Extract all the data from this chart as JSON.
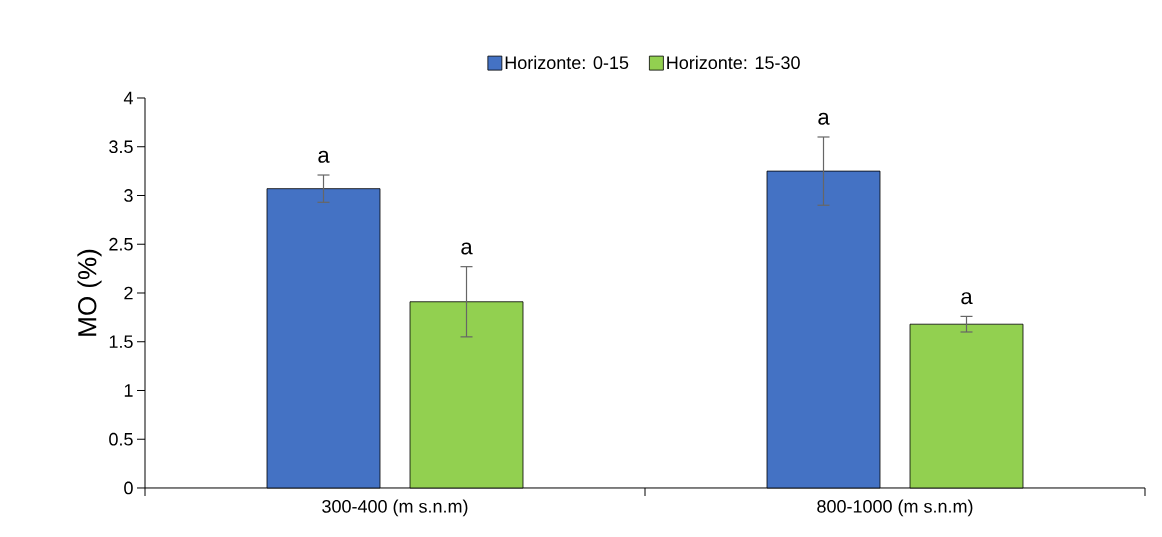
{
  "chart_data": {
    "type": "bar",
    "ylabel": "MO (%)",
    "categories": [
      "300-400 (m s.n.m)",
      "800-1000 (m s.n.m)"
    ],
    "series": [
      {
        "name": "Horizonte: 0-15",
        "color": "#4472c4",
        "values": [
          3.07,
          3.25
        ],
        "errors": [
          0.14,
          0.35
        ]
      },
      {
        "name": "Horizonte: 15-30",
        "color": "#92d050",
        "values": [
          1.91,
          1.68
        ],
        "errors": [
          0.36,
          0.08
        ]
      }
    ],
    "annotations": [
      "a",
      "a",
      "a",
      "a"
    ],
    "ylim": [
      0,
      4
    ],
    "yticks": [
      0,
      0.5,
      1,
      1.5,
      2,
      2.5,
      3,
      3.5,
      4
    ],
    "grid": false,
    "legend": "top"
  }
}
